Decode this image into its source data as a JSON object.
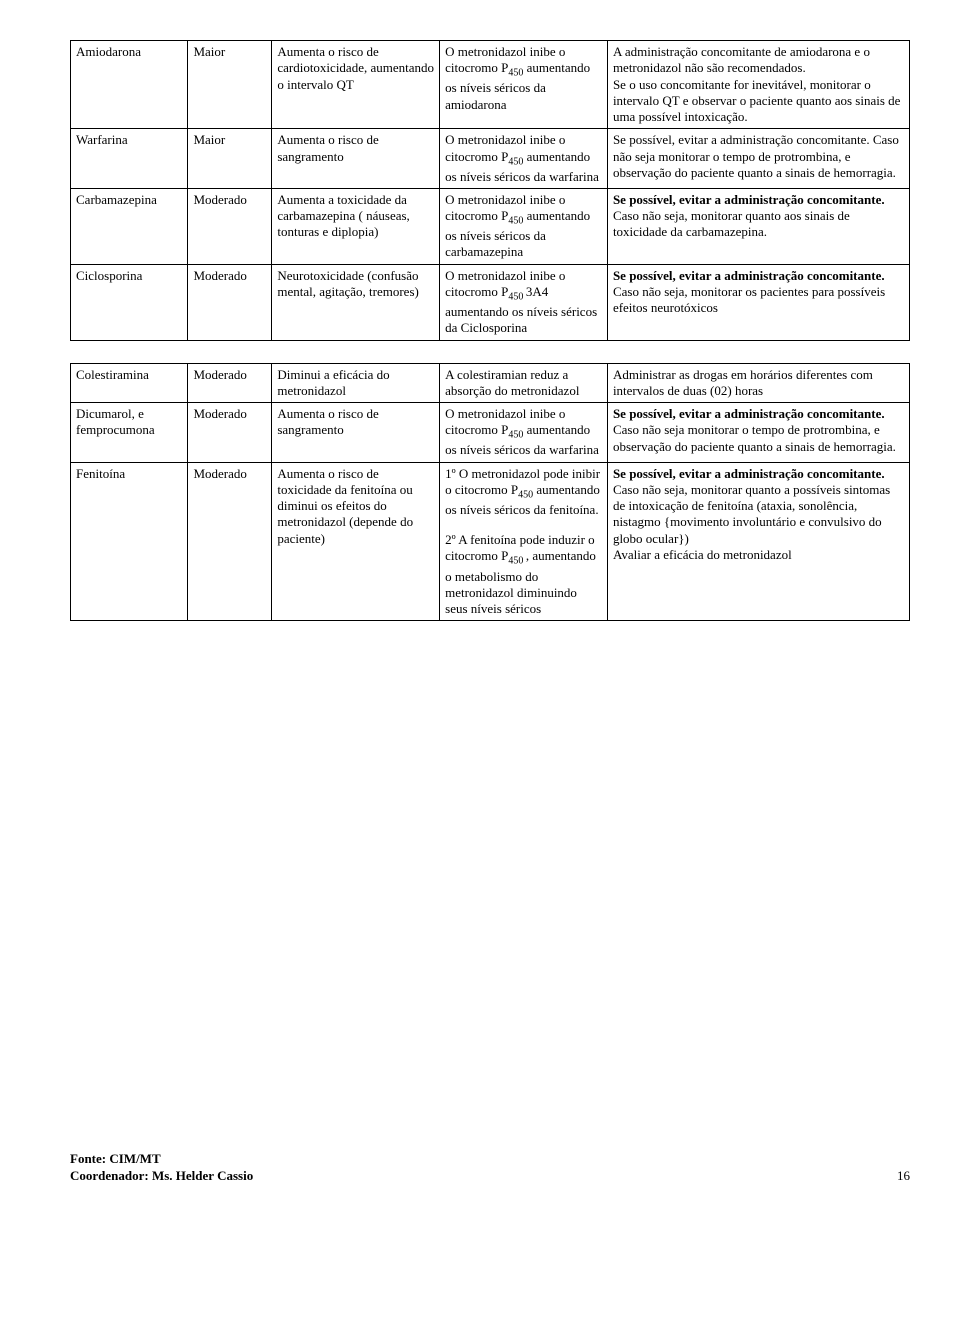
{
  "table1": {
    "rows": [
      {
        "drug": "Amiodarona",
        "severity": "Maior",
        "effect": "Aumenta o risco de cardiotoxicidade, aumentando o intervalo QT",
        "mechanism_pre": "O metronidazol inibe o citocromo P",
        "mechanism_sub": "450",
        "mechanism_post": " aumentando os níveis séricos da amiodarona",
        "rec_bold": "",
        "rec_text": "A administração concomitante de amiodarona e o metronidazol não são recomendados.\nSe o uso concomitante for inevitável, monitorar o intervalo QT e observar o paciente quanto aos sinais de uma possível intoxicação."
      },
      {
        "drug": "Warfarina",
        "severity": "Maior",
        "effect": "Aumenta o risco de sangramento",
        "mechanism_pre": "O metronidazol inibe o citocromo P",
        "mechanism_sub": "450",
        "mechanism_post": " aumentando os níveis séricos da warfarina",
        "rec_bold": "",
        "rec_text": "Se possível, evitar a administração concomitante. Caso não seja monitorar o tempo de protrombina, e observação do paciente quanto a sinais de hemorragia."
      },
      {
        "drug": "Carbamazepina",
        "severity": "Moderado",
        "effect": "Aumenta a toxicidade da carbamazepina ( náuseas, tonturas e diplopia)",
        "mechanism_pre": "O metronidazol inibe o citocromo P",
        "mechanism_sub": "450",
        "mechanism_post": " aumentando os níveis séricos da carbamazepina",
        "rec_bold": "Se possível, evitar a administração concomitante.",
        "rec_text": " Caso não seja, monitorar quanto aos sinais de toxicidade da carbamazepina."
      },
      {
        "drug": "Ciclosporina",
        "severity": "Moderado",
        "effect": "Neurotoxicidade (confusão mental, agitação, tremores)",
        "mechanism_pre": "O metronidazol inibe o citocromo P",
        "mechanism_sub": "450 ",
        "mechanism_post": "3A4 aumentando os níveis séricos da Ciclosporina",
        "rec_bold": "Se possível, evitar a administração concomitante.",
        "rec_text": " Caso não seja, monitorar os pacientes para possíveis efeitos neurotóxicos"
      }
    ]
  },
  "table2": {
    "rows": [
      {
        "drug": "Colestiramina",
        "severity": "Moderado",
        "effect": "Diminui a eficácia do metronidazol",
        "mechanism_html": "A colestiramian reduz a absorção do metronidazol",
        "rec_bold": "",
        "rec_text": "Administrar as drogas em horários diferentes com intervalos de duas (02) horas"
      },
      {
        "drug": "Dicumarol, e femprocumona",
        "severity": "Moderado",
        "effect": "Aumenta o risco de sangramento",
        "mechanism_html": "O metronidazol inibe o citocromo P<span class=\"sub\">450</span> aumentando os níveis séricos da warfarina",
        "rec_bold": "Se possível, evitar a administração concomitante.",
        "rec_text": " Caso não seja monitorar o tempo de protrombina, e observação do paciente quanto a sinais de hemorragia."
      },
      {
        "drug": "Fenitoína",
        "severity": "Moderado",
        "effect": "Aumenta o risco de toxicidade da fenitoína ou diminui os efeitos do metronidazol (depende do paciente)",
        "mechanism_html": "1º O metronidazol pode inibir o citocromo P<span class=\"sub\">450</span> aumentando os níveis séricos da fenitoína.<div class=\"p2\">2º A fenitoína pode induzir o citocromo P<span class=\"sub\">450 </span>, aumentando o metabolismo do metronidazol diminuindo seus níveis séricos</div>",
        "rec_bold": "Se possível, evitar a administração concomitante.",
        "rec_text": " Caso não seja, monitorar quanto a possíveis sintomas de intoxicação de fenitoína (ataxia, sonolência, nistagmo {movimento involuntário e convulsivo do globo ocular})\nAvaliar a eficácia do metronidazol"
      }
    ]
  },
  "footer": {
    "source": "Fonte: CIM/MT",
    "coord": "Coordenador: Ms. Helder Cassio",
    "page": "16"
  }
}
